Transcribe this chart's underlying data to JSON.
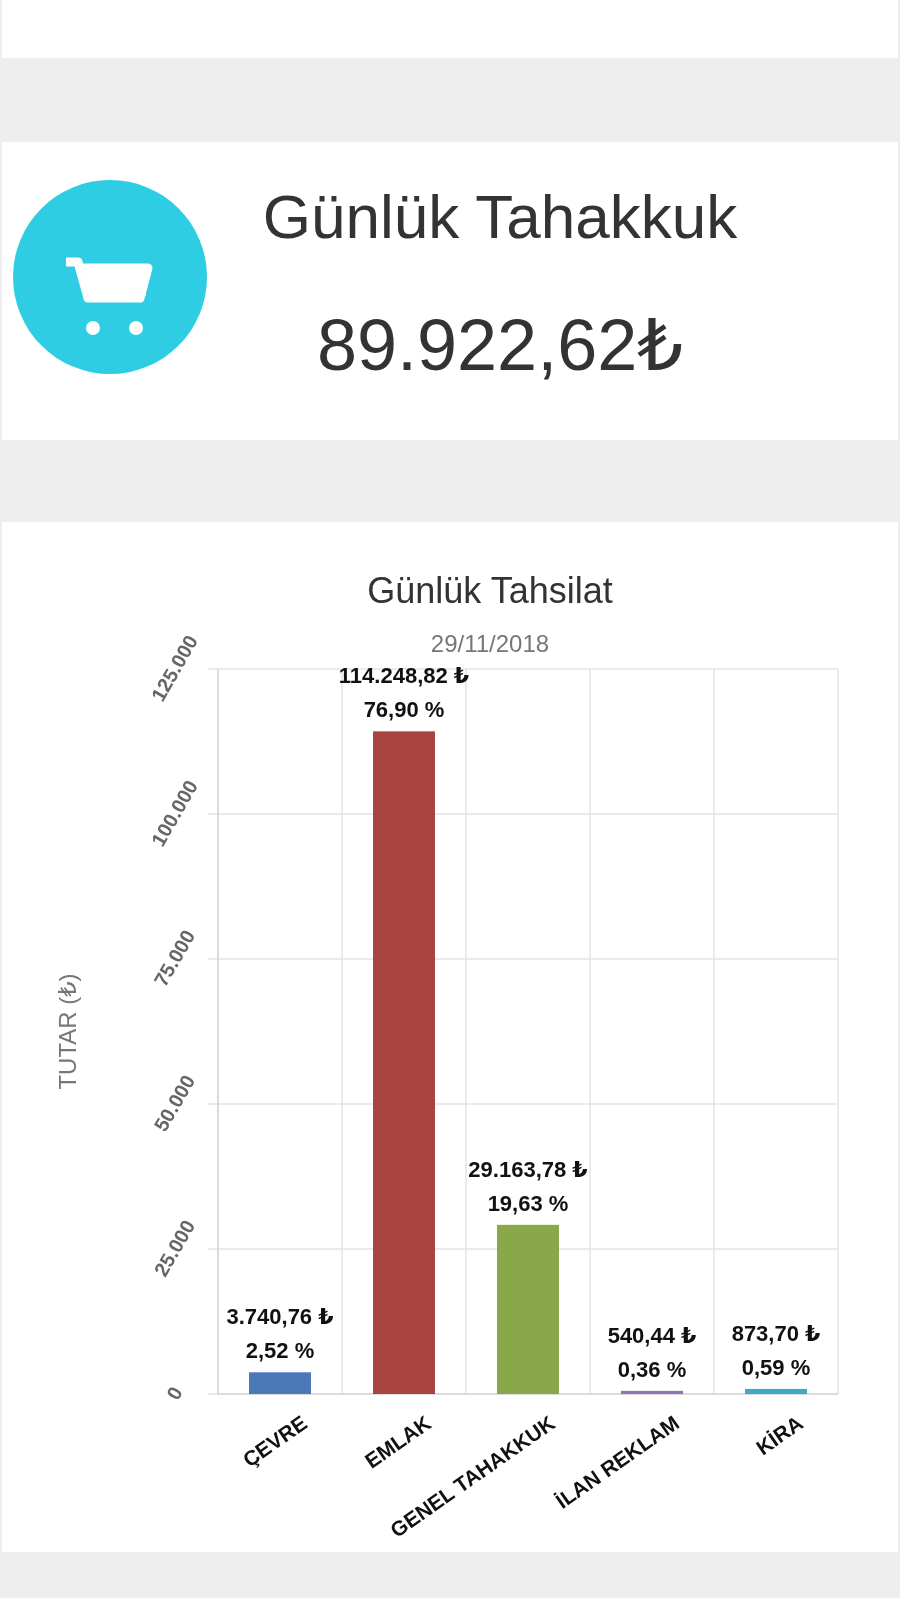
{
  "chart_data": [
    {
      "type": "other",
      "title": "Günlük Tahakkuk",
      "annotations": [
        "89.922,62₺"
      ]
    },
    {
      "type": "bar",
      "title": "Günlük Tahsilat",
      "subtitle": "29/11/2018",
      "ylabel": "TUTAR (₺)",
      "categories": [
        "ÇEVRE",
        "EMLAK",
        "GENEL TAHAKKUK",
        "İLAN REKLAM",
        "KİRA"
      ],
      "values": [
        3740.76,
        114248.82,
        29163.78,
        540.44,
        873.7
      ],
      "colors": [
        "#4a78b8",
        "#a84442",
        "#88a84a",
        "#8e74b0",
        "#3fa8c4"
      ],
      "value_labels": [
        "3.740,76 ₺\n2,52 %",
        "114.248,82 ₺\n76,90 %",
        "29.163,78 ₺\n19,63 %",
        "540,44 ₺\n0,36 %",
        "873,70 ₺\n0,59 %"
      ],
      "ylim": [
        0,
        125000
      ],
      "yticks": [
        {
          "value": 0,
          "label": "0"
        },
        {
          "value": 25000,
          "label": "25.000"
        },
        {
          "value": 50000,
          "label": "50.000"
        },
        {
          "value": 75000,
          "label": "75.000"
        },
        {
          "value": 100000,
          "label": "100.000"
        },
        {
          "value": 125000,
          "label": "125.000"
        }
      ],
      "grid": true
    }
  ]
}
